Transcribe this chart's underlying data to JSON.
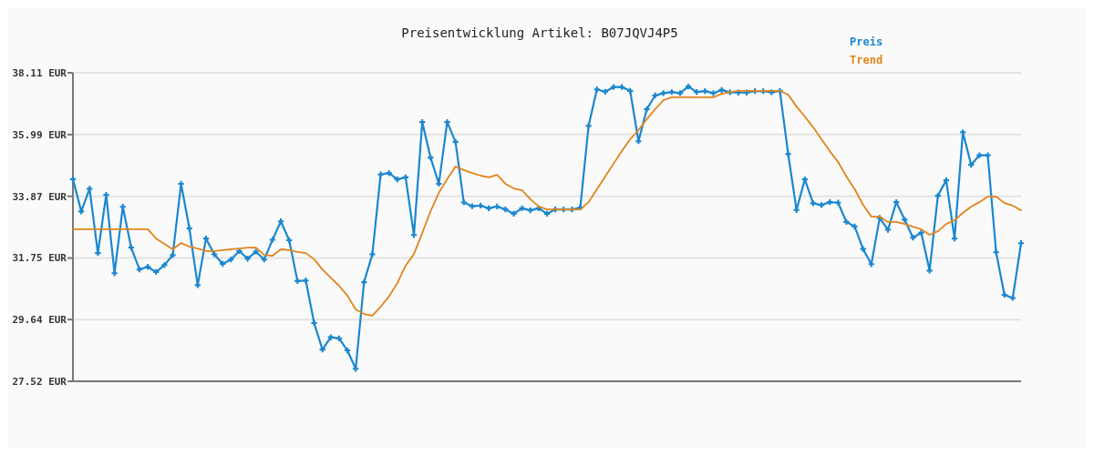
{
  "chart_data": {
    "type": "line",
    "title": "Preisentwicklung Artikel: B07JQVJ4P5",
    "categories": [
      null,
      null,
      null,
      null,
      null,
      null,
      null,
      null,
      null,
      null,
      null,
      null,
      null,
      null,
      null,
      null,
      null,
      null,
      null,
      null,
      null,
      null,
      null,
      null,
      null,
      null,
      null,
      null,
      null,
      null,
      null,
      null,
      null,
      null,
      null,
      null,
      null,
      null,
      null,
      null,
      null,
      null,
      null,
      null,
      null,
      null,
      null,
      null,
      null,
      null,
      null,
      null,
      null,
      null,
      null,
      null,
      null,
      null,
      null,
      null,
      null,
      null,
      null,
      null,
      null,
      null,
      null,
      null,
      null,
      null,
      null,
      null,
      null,
      null,
      null,
      null,
      null,
      null,
      null,
      null,
      null,
      null,
      null,
      null,
      null,
      null,
      null,
      null,
      null,
      null,
      null,
      null,
      null,
      null,
      null,
      null,
      null,
      null,
      null,
      null,
      null,
      null,
      null,
      null,
      null,
      null,
      null,
      null,
      null,
      null,
      null,
      null,
      null,
      null,
      null
    ],
    "series": [
      {
        "name": "Preis",
        "color": "#1a87d0",
        "marker": "cross",
        "values": [
          34.46,
          33.35,
          34.13,
          31.92,
          33.92,
          31.23,
          33.51,
          32.11,
          31.36,
          31.45,
          31.27,
          31.51,
          31.85,
          34.3,
          32.77,
          30.82,
          32.42,
          31.88,
          31.55,
          31.7,
          31.99,
          31.73,
          31.97,
          31.7,
          32.38,
          33.01,
          32.36,
          30.96,
          30.98,
          29.52,
          28.61,
          29.03,
          28.99,
          28.58,
          27.95,
          30.92,
          31.88,
          34.62,
          34.67,
          34.45,
          34.52,
          32.54,
          36.42,
          35.2,
          34.3,
          36.42,
          35.74,
          33.66,
          33.53,
          33.55,
          33.46,
          33.52,
          33.42,
          33.27,
          33.46,
          33.39,
          33.46,
          33.27,
          33.42,
          33.42,
          33.42,
          33.48,
          36.29,
          37.54,
          37.46,
          37.62,
          37.62,
          37.49,
          35.76,
          36.86,
          37.33,
          37.41,
          37.45,
          37.41,
          37.64,
          37.45,
          37.48,
          37.41,
          37.52,
          37.44,
          37.43,
          37.43,
          37.48,
          37.48,
          37.44,
          37.49,
          35.32,
          33.4,
          34.45,
          33.63,
          33.57,
          33.67,
          33.65,
          32.99,
          32.83,
          32.06,
          31.54,
          33.13,
          32.72,
          33.67,
          33.07,
          32.45,
          32.62,
          31.32,
          33.89,
          34.42,
          32.42,
          36.07,
          34.95,
          35.28,
          35.28,
          31.95,
          30.49,
          30.38,
          32.26
        ]
      },
      {
        "name": "Trend",
        "color": "#e2841a",
        "marker": "none",
        "values": [
          32.74,
          32.74,
          32.74,
          32.74,
          32.74,
          32.74,
          32.74,
          32.74,
          32.74,
          32.74,
          32.42,
          32.24,
          32.05,
          32.27,
          32.14,
          32.08,
          31.99,
          31.99,
          32.02,
          32.05,
          32.08,
          32.11,
          32.11,
          31.86,
          31.83,
          32.05,
          32.02,
          31.96,
          31.92,
          31.71,
          31.36,
          31.08,
          30.8,
          30.46,
          29.99,
          29.83,
          29.77,
          30.08,
          30.43,
          30.89,
          31.49,
          31.89,
          32.61,
          33.36,
          33.99,
          34.46,
          34.89,
          34.77,
          34.67,
          34.58,
          34.52,
          34.61,
          34.3,
          34.14,
          34.08,
          33.77,
          33.52,
          33.42,
          33.42,
          33.42,
          33.42,
          33.42,
          33.67,
          34.11,
          34.55,
          34.99,
          35.42,
          35.83,
          36.14,
          36.52,
          36.86,
          37.17,
          37.27,
          37.27,
          37.27,
          37.27,
          37.27,
          37.27,
          37.39,
          37.45,
          37.49,
          37.49,
          37.49,
          37.49,
          37.49,
          37.49,
          37.36,
          36.95,
          36.61,
          36.24,
          35.83,
          35.42,
          35.05,
          34.55,
          34.11,
          33.58,
          33.17,
          33.17,
          32.99,
          32.99,
          32.92,
          32.83,
          32.74,
          32.55,
          32.67,
          32.92,
          33.05,
          33.3,
          33.52,
          33.67,
          33.86,
          33.86,
          33.64,
          33.55,
          33.39
        ]
      }
    ],
    "ylim": [
      27.52,
      38.11
    ],
    "yticks": [
      {
        "value": 27.52,
        "label": "27.52 EUR"
      },
      {
        "value": 29.64,
        "label": "29.64 EUR"
      },
      {
        "value": 31.75,
        "label": "31.75 EUR"
      },
      {
        "value": 33.87,
        "label": "33.87 EUR"
      },
      {
        "value": 35.99,
        "label": "35.99 EUR"
      },
      {
        "value": 38.11,
        "label": "38.11 EUR"
      }
    ],
    "grid": "y",
    "legend": "top right",
    "line_style": "solid"
  }
}
